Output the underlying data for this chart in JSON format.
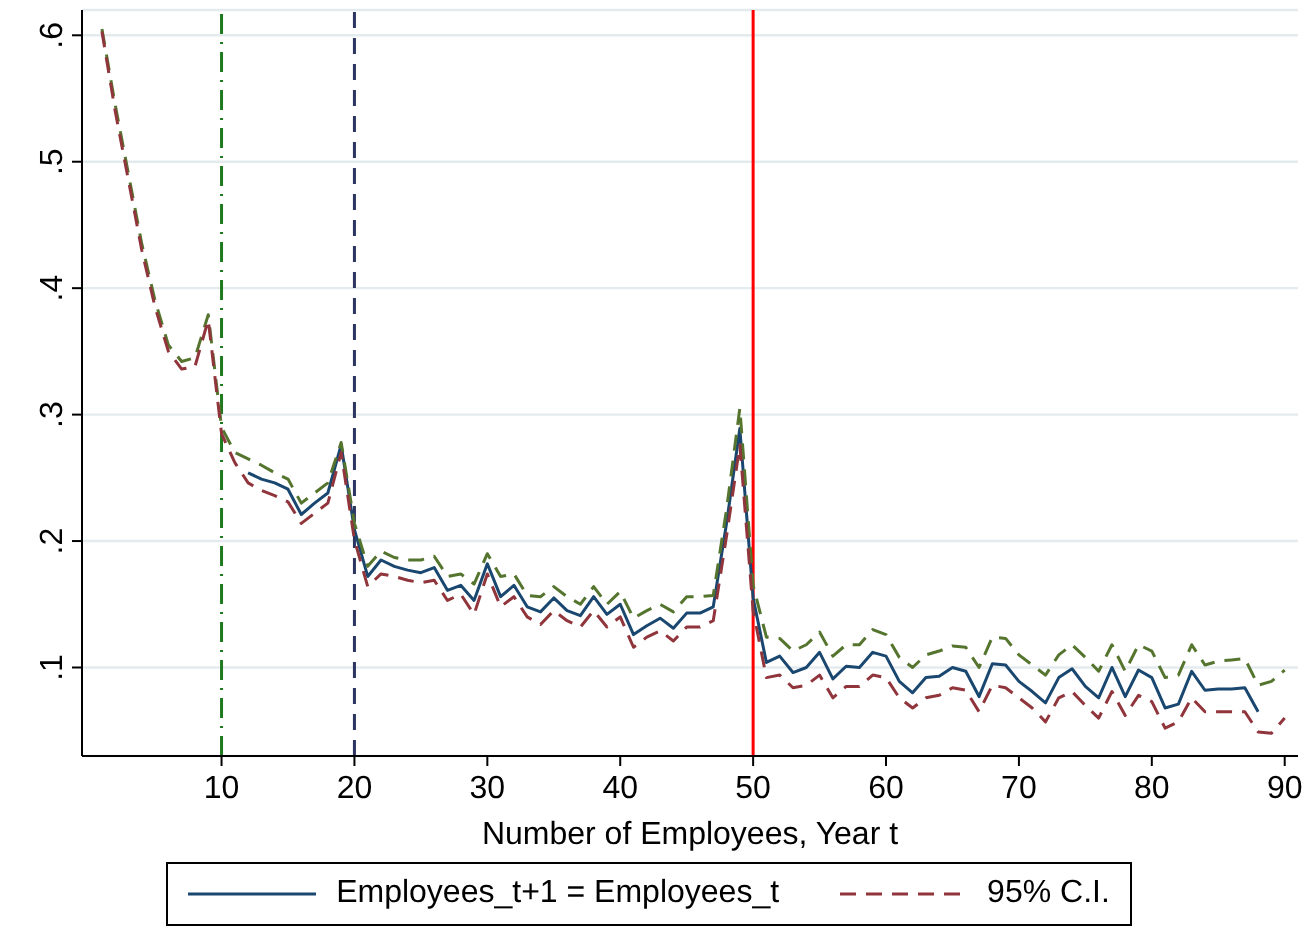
{
  "chart_data": {
    "type": "line",
    "xlabel": "Number of Employees, Year t",
    "x": [
      1,
      2,
      3,
      4,
      5,
      6,
      7,
      8,
      9,
      10,
      11,
      12,
      13,
      14,
      15,
      16,
      17,
      18,
      19,
      20,
      21,
      22,
      23,
      24,
      25,
      26,
      27,
      28,
      29,
      30,
      31,
      32,
      33,
      34,
      35,
      36,
      37,
      38,
      39,
      40,
      41,
      42,
      43,
      44,
      45,
      46,
      47,
      48,
      49,
      50,
      51,
      52,
      53,
      54,
      55,
      56,
      57,
      58,
      59,
      60,
      61,
      62,
      63,
      64,
      65,
      66,
      67,
      68,
      69,
      70,
      71,
      72,
      73,
      74,
      75,
      76,
      77,
      78,
      79,
      80,
      81,
      82,
      83,
      84,
      85,
      86,
      87,
      88,
      89,
      90
    ],
    "series": [
      {
        "name": "Employees_t+1 = Employees_t",
        "color": "#1a476f",
        "line_style": "solid",
        "values": [
          null,
          null,
          null,
          null,
          null,
          null,
          null,
          null,
          null,
          null,
          null,
          0.254,
          0.249,
          0.246,
          0.241,
          0.221,
          0.23,
          0.238,
          0.276,
          0.209,
          0.172,
          0.185,
          0.18,
          0.177,
          0.175,
          0.179,
          0.161,
          0.165,
          0.153,
          0.182,
          0.156,
          0.165,
          0.148,
          0.144,
          0.155,
          0.145,
          0.141,
          0.156,
          0.142,
          0.15,
          0.126,
          0.133,
          0.139,
          0.131,
          0.143,
          0.143,
          0.148,
          0.214,
          0.289,
          0.155,
          0.104,
          0.109,
          0.096,
          0.1,
          0.112,
          0.091,
          0.101,
          0.1,
          0.112,
          0.109,
          0.089,
          0.08,
          0.092,
          0.093,
          0.1,
          0.097,
          0.077,
          0.103,
          0.102,
          0.089,
          0.081,
          0.072,
          0.092,
          0.099,
          0.085,
          0.076,
          0.1,
          0.077,
          0.098,
          0.092,
          0.068,
          0.071,
          0.097,
          0.082,
          0.083,
          0.083,
          0.084,
          0.065,
          null,
          null
        ]
      },
      {
        "color": "#55752f",
        "line_style": "dashed",
        "values": [
          0.605,
          0.545,
          0.49,
          0.435,
          0.39,
          0.355,
          0.342,
          0.345,
          0.379,
          0.29,
          0.27,
          0.265,
          0.26,
          0.254,
          0.249,
          0.23,
          0.238,
          0.246,
          0.278,
          0.214,
          0.18,
          0.192,
          0.187,
          0.185,
          0.185,
          0.188,
          0.172,
          0.174,
          0.166,
          0.19,
          0.172,
          0.174,
          0.157,
          0.156,
          0.164,
          0.156,
          0.15,
          0.164,
          0.15,
          0.16,
          0.139,
          0.145,
          0.15,
          0.144,
          0.156,
          0.156,
          0.157,
          0.225,
          0.305,
          0.165,
          0.124,
          0.123,
          0.113,
          0.118,
          0.128,
          0.109,
          0.118,
          0.118,
          0.13,
          0.126,
          0.108,
          0.1,
          0.11,
          0.113,
          0.117,
          0.116,
          0.1,
          0.124,
          0.123,
          0.11,
          0.102,
          0.094,
          0.11,
          0.118,
          0.108,
          0.097,
          0.118,
          0.097,
          0.118,
          0.113,
          0.092,
          0.094,
          0.118,
          0.102,
          0.105,
          0.106,
          0.107,
          0.086,
          0.089,
          0.098
        ]
      },
      {
        "name": "95% C.I.",
        "color": "#90353b",
        "line_style": "dashed",
        "values": [
          0.603,
          0.54,
          0.485,
          0.43,
          0.385,
          0.35,
          0.336,
          0.338,
          0.375,
          0.285,
          0.262,
          0.246,
          0.24,
          0.236,
          0.231,
          0.214,
          0.222,
          0.23,
          0.27,
          0.201,
          0.164,
          0.174,
          0.172,
          0.169,
          0.167,
          0.169,
          0.153,
          0.158,
          0.142,
          0.174,
          0.148,
          0.156,
          0.14,
          0.134,
          0.145,
          0.137,
          0.132,
          0.145,
          0.132,
          0.14,
          0.116,
          0.124,
          0.129,
          0.121,
          0.132,
          0.132,
          0.137,
          0.204,
          0.276,
          0.145,
          0.092,
          0.094,
          0.084,
          0.086,
          0.094,
          0.076,
          0.085,
          0.085,
          0.094,
          0.092,
          0.076,
          0.068,
          0.076,
          0.078,
          0.084,
          0.082,
          0.065,
          0.086,
          0.084,
          0.076,
          0.068,
          0.057,
          0.076,
          0.081,
          0.07,
          0.06,
          0.081,
          0.062,
          0.078,
          0.073,
          0.052,
          0.057,
          0.076,
          0.065,
          0.065,
          0.065,
          0.065,
          0.049,
          0.048,
          0.06
        ]
      }
    ],
    "xlim": [
      -0.5,
      91
    ],
    "xticks": [
      10,
      20,
      30,
      40,
      50,
      60,
      70,
      80,
      90
    ],
    "ylim": [
      0.03,
      0.62
    ],
    "yticks": [
      {
        "value": 0.1,
        "label": ".1"
      },
      {
        "value": 0.2,
        "label": ".2"
      },
      {
        "value": 0.3,
        "label": ".3"
      },
      {
        "value": 0.4,
        "label": ".4"
      },
      {
        "value": 0.5,
        "label": ".5"
      },
      {
        "value": 0.6,
        "label": ".6"
      }
    ],
    "grid": "y",
    "legend": "bottom",
    "marker": "none",
    "ref_lines": [
      {
        "axis": "x",
        "value": 10,
        "color": "#1f7a1f",
        "line_style": "dashdot"
      },
      {
        "axis": "x",
        "value": 20,
        "color": "#2b3560",
        "line_style": "dashed"
      },
      {
        "axis": "x",
        "value": 50,
        "color": "#ff0000",
        "line_style": "solid"
      }
    ]
  }
}
